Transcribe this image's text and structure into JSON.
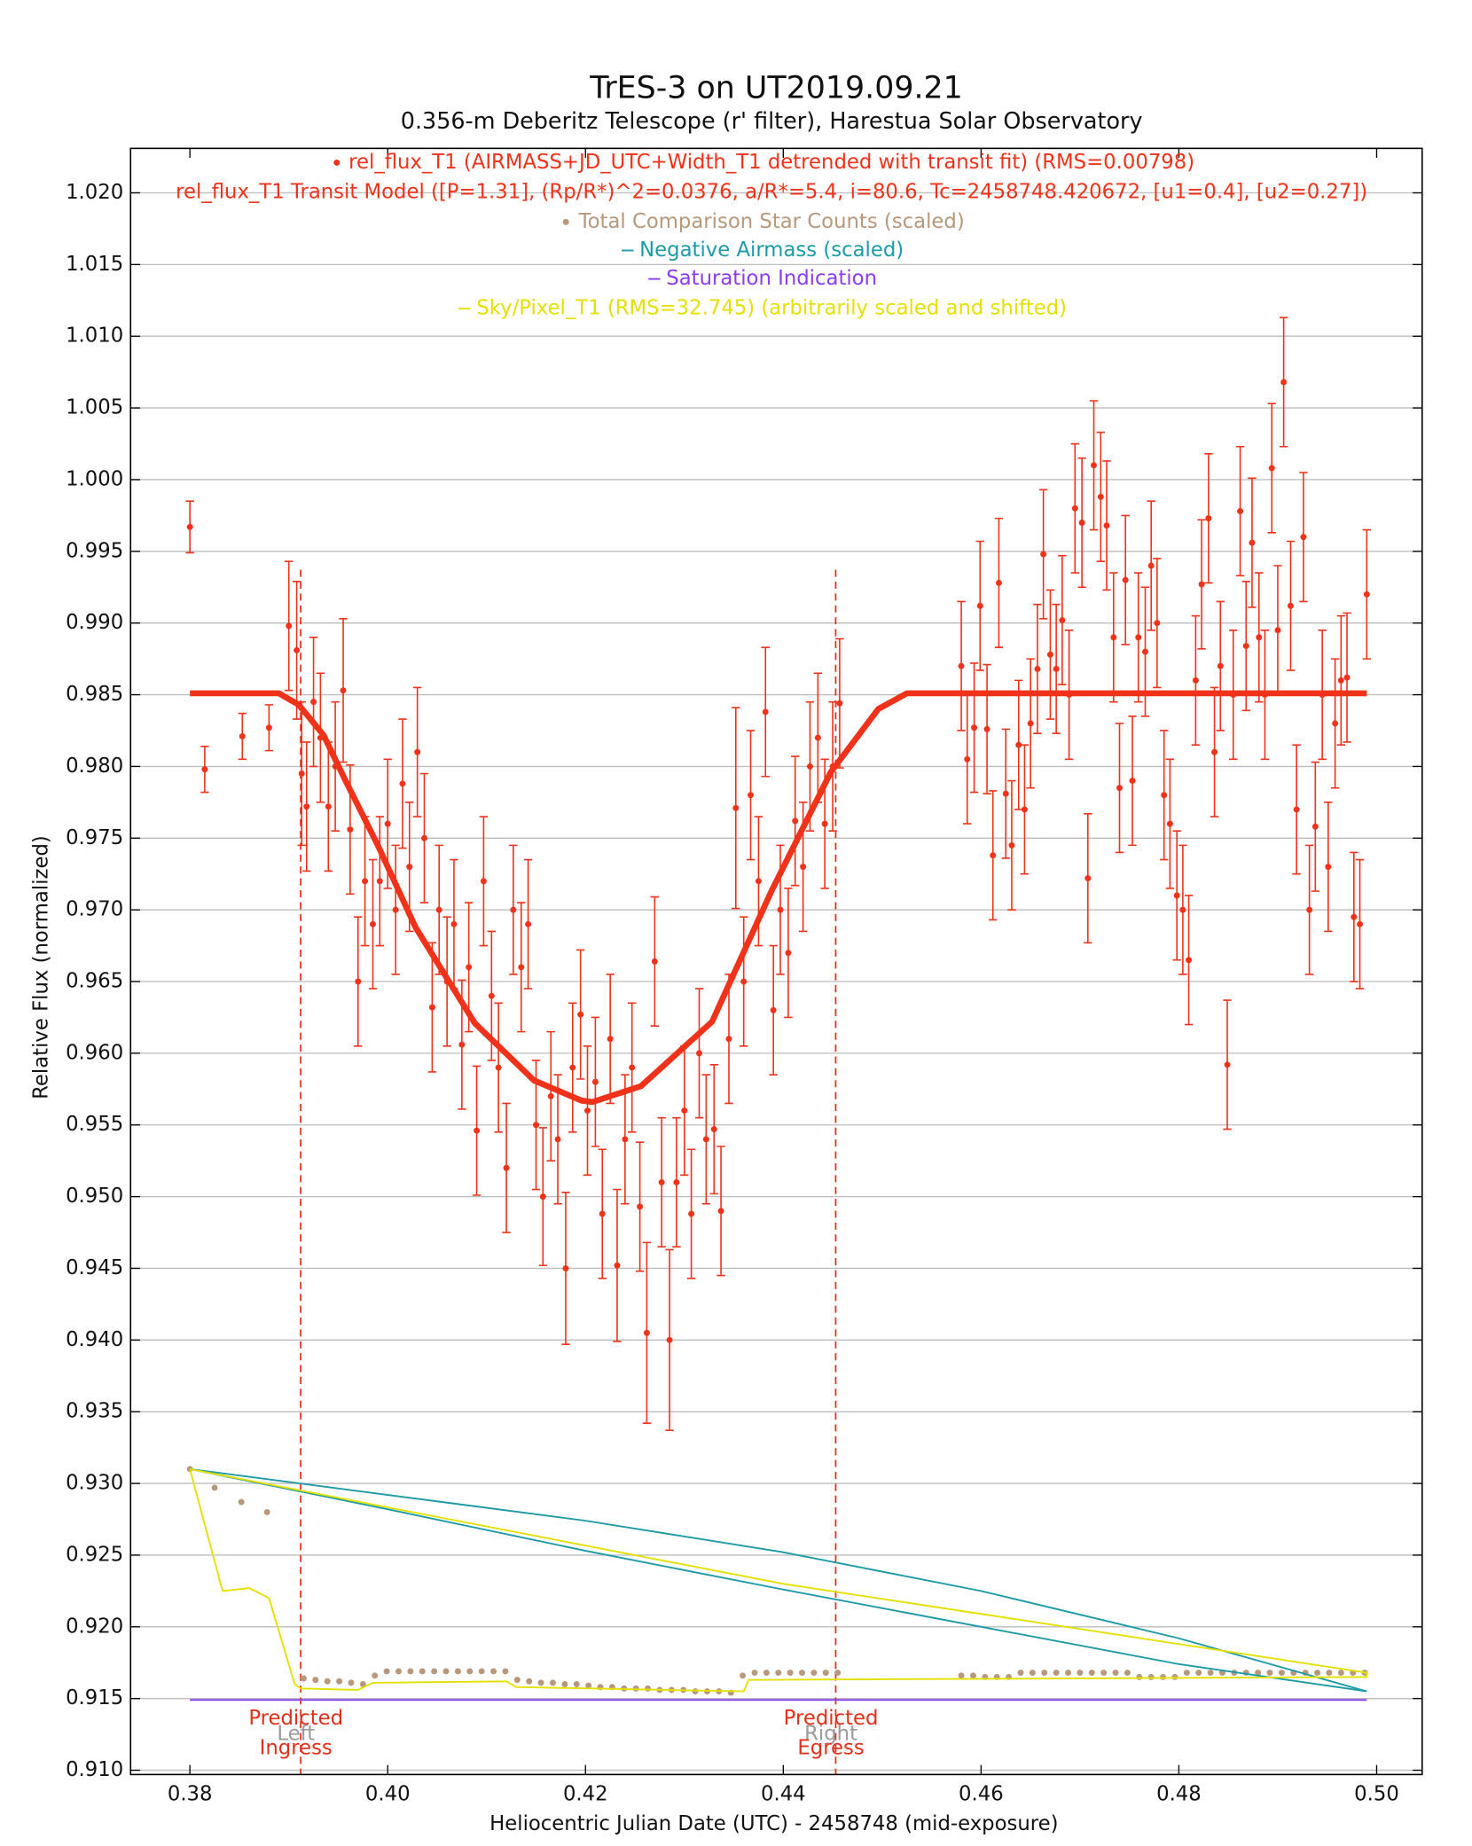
{
  "chart_data": {
    "type": "scatter",
    "title": "TrES-3 on UT2019.09.21",
    "subtitle": "0.356-m Deberitz Telescope (r' filter), Harestua Solar Observatory",
    "xlabel": "Heliocentric Julian Date (UTC) - 2458748 (mid-exposure)",
    "ylabel": "Relative Flux (normalized)",
    "xlim": [
      0.374,
      0.5046
    ],
    "ylim": [
      0.9097,
      1.0231
    ],
    "xticks": [
      0.38,
      {
        "value": 0.4,
        "label": "0.40"
      },
      0.42,
      0.44,
      0.46,
      0.48,
      {
        "value": 0.5,
        "label": "0.50"
      }
    ],
    "yticks": [
      {
        "value": 0.91,
        "label": "0.910"
      },
      0.915,
      {
        "value": 0.92,
        "label": "0.920"
      },
      0.925,
      {
        "value": 0.93,
        "label": "0.930"
      },
      0.935,
      {
        "value": 0.94,
        "label": "0.940"
      },
      0.945,
      {
        "value": 0.95,
        "label": "0.950"
      },
      0.955,
      {
        "value": 0.96,
        "label": "0.960"
      },
      0.965,
      {
        "value": 0.97,
        "label": "0.970"
      },
      0.975,
      {
        "value": 0.98,
        "label": "0.980"
      },
      0.985,
      {
        "value": 0.99,
        "label": "0.990"
      },
      0.995,
      {
        "value": 1.0,
        "label": "1.000"
      },
      1.005,
      {
        "value": 1.01,
        "label": "1.010"
      },
      1.015,
      {
        "value": 1.02,
        "label": "1.020"
      }
    ],
    "grid": true,
    "markers": [
      {
        "x": 0.3912,
        "label": [
          "Predicted",
          "Ingress"
        ],
        "side": "Left"
      },
      {
        "x": 0.4453,
        "label": [
          "Predicted",
          "Egress"
        ],
        "side": "Right"
      }
    ],
    "series": [
      {
        "name": "rel_flux_T1 (AIRMASS+JD_UTC+Width_T1 detrended with transit fit) (RMS=0.00798)",
        "color": "#f0321a",
        "style": "errorbar",
        "x": [
          0.38,
          0.3815,
          0.3853,
          0.388,
          0.39,
          0.3908,
          0.3913,
          0.3918,
          0.3925,
          0.3932,
          0.394,
          0.3947,
          0.3955,
          0.3962,
          0.397,
          0.3977,
          0.3985,
          0.3992,
          0.4,
          0.4008,
          0.4015,
          0.4022,
          0.403,
          0.4037,
          0.4045,
          0.4052,
          0.406,
          0.4067,
          0.4075,
          0.4082,
          0.409,
          0.4097,
          0.4105,
          0.4112,
          0.412,
          0.4127,
          0.4135,
          0.4142,
          0.415,
          0.4157,
          0.4165,
          0.4172,
          0.418,
          0.4187,
          0.4195,
          0.4202,
          0.421,
          0.4217,
          0.4225,
          0.4232,
          0.424,
          0.4247,
          0.4255,
          0.4262,
          0.427,
          0.4277,
          0.4285,
          0.4292,
          0.43,
          0.4307,
          0.4315,
          0.4322,
          0.433,
          0.4337,
          0.4345,
          0.4352,
          0.436,
          0.4367,
          0.4375,
          0.4382,
          0.439,
          0.4397,
          0.4405,
          0.4412,
          0.442,
          0.4427,
          0.4435,
          0.4442,
          0.445,
          0.4457,
          0.458,
          0.4586,
          0.4593,
          0.4599,
          0.4606,
          0.4612,
          0.4618,
          0.4625,
          0.4631,
          0.4638,
          0.4644,
          0.465,
          0.4657,
          0.4663,
          0.467,
          0.4676,
          0.4682,
          0.4689,
          0.4695,
          0.4702,
          0.4708,
          0.4714,
          0.4721,
          0.4727,
          0.4734,
          0.474,
          0.4746,
          0.4753,
          0.4759,
          0.4766,
          0.4772,
          0.4778,
          0.4785,
          0.4791,
          0.4798,
          0.4804,
          0.481,
          0.4817,
          0.4823,
          0.483,
          0.4836,
          0.4842,
          0.4849,
          0.4855,
          0.4862,
          0.4868,
          0.4874,
          0.4881,
          0.4887,
          0.4894,
          0.49,
          0.4906,
          0.4913,
          0.4919,
          0.4926,
          0.4932,
          0.4938,
          0.4945,
          0.4951,
          0.4958,
          0.4964,
          0.497,
          0.4977,
          0.4983,
          0.499
        ],
        "values": [
          0.9967,
          0.9798,
          0.9821,
          0.9827,
          0.9898,
          0.9881,
          0.9795,
          0.9772,
          0.9845,
          0.982,
          0.9772,
          0.98,
          0.9853,
          0.9756,
          0.965,
          0.972,
          0.969,
          0.972,
          0.976,
          0.97,
          0.9788,
          0.973,
          0.981,
          0.975,
          0.9632,
          0.97,
          0.965,
          0.969,
          0.9606,
          0.966,
          0.9546,
          0.972,
          0.964,
          0.959,
          0.952,
          0.97,
          0.966,
          0.969,
          0.955,
          0.95,
          0.957,
          0.954,
          0.945,
          0.959,
          0.9627,
          0.956,
          0.958,
          0.9488,
          0.961,
          0.9452,
          0.954,
          0.959,
          0.9493,
          0.9405,
          0.9664,
          0.951,
          0.94,
          0.951,
          0.956,
          0.9488,
          0.96,
          0.954,
          0.9547,
          0.949,
          0.961,
          0.9771,
          0.965,
          0.978,
          0.972,
          0.9838,
          0.963,
          0.97,
          0.967,
          0.9762,
          0.973,
          0.98,
          0.982,
          0.976,
          0.98,
          0.9844,
          0.987,
          0.9805,
          0.9827,
          0.9912,
          0.9826,
          0.9738,
          0.9928,
          0.9781,
          0.9745,
          0.9815,
          0.977,
          0.983,
          0.9868,
          0.9948,
          0.9878,
          0.9868,
          0.9902,
          0.985,
          0.998,
          0.997,
          0.9722,
          1.001,
          0.9988,
          0.9968,
          0.989,
          0.9785,
          0.993,
          0.979,
          0.989,
          0.988,
          0.994,
          0.99,
          0.978,
          0.976,
          0.971,
          0.97,
          0.9665,
          0.986,
          0.9927,
          0.9973,
          0.981,
          0.987,
          0.9592,
          0.985,
          0.9978,
          0.9884,
          0.9956,
          0.989,
          0.985,
          1.0008,
          0.9895,
          1.0068,
          0.9912,
          0.977,
          0.996,
          0.97,
          0.9758,
          0.985,
          0.973,
          0.983,
          0.986,
          0.9862,
          0.9695,
          0.969,
          0.992
        ],
        "errors": [
          0.0018,
          0.0016,
          0.0016,
          0.0016,
          0.0045,
          0.0048,
          0.005,
          0.0045,
          0.0045,
          0.0045,
          0.0045,
          0.0045,
          0.005,
          0.0045,
          0.0045,
          0.0045,
          0.0045,
          0.0045,
          0.0045,
          0.0045,
          0.0045,
          0.0045,
          0.0045,
          0.0045,
          0.0045,
          0.0045,
          0.0045,
          0.0045,
          0.0045,
          0.0045,
          0.0045,
          0.0045,
          0.0045,
          0.0045,
          0.0045,
          0.0045,
          0.0045,
          0.0045,
          0.0045,
          0.0048,
          0.0045,
          0.0045,
          0.0053,
          0.0045,
          0.0045,
          0.0045,
          0.0045,
          0.0045,
          0.0045,
          0.0053,
          0.0045,
          0.0045,
          0.0045,
          0.0063,
          0.0045,
          0.0045,
          0.0063,
          0.0045,
          0.0045,
          0.0045,
          0.0045,
          0.0045,
          0.0045,
          0.0045,
          0.0045,
          0.007,
          0.0045,
          0.0045,
          0.0045,
          0.0045,
          0.0045,
          0.0045,
          0.0045,
          0.0045,
          0.0045,
          0.0045,
          0.0045,
          0.0045,
          0.0045,
          0.0045,
          0.0045,
          0.0045,
          0.0045,
          0.0045,
          0.0045,
          0.0045,
          0.0045,
          0.0045,
          0.0045,
          0.0045,
          0.0045,
          0.0045,
          0.0045,
          0.0045,
          0.0045,
          0.0045,
          0.0045,
          0.0045,
          0.0045,
          0.0045,
          0.0045,
          0.0045,
          0.0045,
          0.0045,
          0.0045,
          0.0045,
          0.0045,
          0.0045,
          0.0045,
          0.0045,
          0.0045,
          0.0045,
          0.0045,
          0.0045,
          0.0045,
          0.0045,
          0.0045,
          0.0045,
          0.0045,
          0.0045,
          0.0045,
          0.0045,
          0.0045,
          0.0045,
          0.0045,
          0.0045,
          0.0045,
          0.0045,
          0.0045,
          0.0045,
          0.0045,
          0.0045,
          0.0045,
          0.0045,
          0.0045,
          0.0045,
          0.0045,
          0.0045,
          0.0045,
          0.0045,
          0.0045,
          0.0045,
          0.0045,
          0.0045,
          0.0045
        ]
      },
      {
        "name": "rel_flux_T1 Transit Model ([P=1.31], (Rp/R*)^2=0.0376, a/R*=5.4, i=80.6, Tc=2458748.420672, [u1=0.4], [u2=0.27])",
        "color": "#f0321a",
        "style": "model",
        "x": [
          0.38,
          0.389,
          0.391,
          0.3935,
          0.3956,
          0.399,
          0.4028,
          0.4088,
          0.4148,
          0.4196,
          0.4207,
          0.4256,
          0.4328,
          0.4388,
          0.4448,
          0.4496,
          0.4525,
          0.499
        ],
        "values": [
          0.9851,
          0.9851,
          0.9843,
          0.9822,
          0.9792,
          0.9745,
          0.9688,
          0.9621,
          0.9581,
          0.9567,
          0.9566,
          0.9577,
          0.9622,
          0.9713,
          0.9796,
          0.984,
          0.9851,
          0.9851
        ]
      },
      {
        "name": "Total Comparison Star Counts (scaled)",
        "color": "#b8987c",
        "style": "dots",
        "x": [
          0.38,
          0.3825,
          0.3852,
          0.3878,
          0.3915,
          0.3927,
          0.3939,
          0.3951,
          0.3963,
          0.3975,
          0.3987,
          0.3999,
          0.4011,
          0.4023,
          0.4035,
          0.4047,
          0.4059,
          0.4071,
          0.4083,
          0.4095,
          0.4107,
          0.4119,
          0.4131,
          0.4143,
          0.4155,
          0.4167,
          0.4179,
          0.4191,
          0.4203,
          0.4215,
          0.4227,
          0.4239,
          0.4251,
          0.4263,
          0.4275,
          0.4287,
          0.4299,
          0.4311,
          0.4323,
          0.4335,
          0.4347,
          0.4359,
          0.4371,
          0.4383,
          0.4395,
          0.4407,
          0.4419,
          0.4431,
          0.4443,
          0.4455,
          0.458,
          0.4592,
          0.4604,
          0.4616,
          0.4628,
          0.464,
          0.4652,
          0.4664,
          0.4676,
          0.4688,
          0.47,
          0.4712,
          0.4724,
          0.4736,
          0.4748,
          0.476,
          0.4772,
          0.4784,
          0.4796,
          0.4808,
          0.482,
          0.4832,
          0.4844,
          0.4856,
          0.4868,
          0.488,
          0.4892,
          0.4904,
          0.4916,
          0.4928,
          0.494,
          0.4952,
          0.4964,
          0.4976,
          0.4988
        ],
        "values": [
          0.931,
          0.9297,
          0.9287,
          0.928,
          0.9164,
          0.9163,
          0.9162,
          0.9162,
          0.9161,
          0.916,
          0.9166,
          0.9169,
          0.9169,
          0.9169,
          0.9169,
          0.9169,
          0.9169,
          0.9169,
          0.9169,
          0.9169,
          0.9169,
          0.9169,
          0.9163,
          0.9162,
          0.9161,
          0.9161,
          0.916,
          0.916,
          0.9159,
          0.9158,
          0.9158,
          0.9157,
          0.9157,
          0.9157,
          0.9156,
          0.9156,
          0.9156,
          0.9155,
          0.9155,
          0.9155,
          0.9154,
          0.9166,
          0.9168,
          0.9168,
          0.9168,
          0.9168,
          0.9168,
          0.9168,
          0.9168,
          0.9168,
          0.9166,
          0.9166,
          0.9165,
          0.9165,
          0.9165,
          0.9168,
          0.9168,
          0.9168,
          0.9168,
          0.9168,
          0.9168,
          0.9168,
          0.9168,
          0.9168,
          0.9168,
          0.9165,
          0.9165,
          0.9165,
          0.9165,
          0.9168,
          0.9168,
          0.9168,
          0.9168,
          0.9168,
          0.9168,
          0.9168,
          0.9168,
          0.9168,
          0.9168,
          0.9168,
          0.9168,
          0.9168,
          0.9168,
          0.9168,
          0.9168
        ]
      },
      {
        "name": "Negative Airmass (scaled)",
        "color": "#1c9aa6",
        "style": "line",
        "x": [
          0.38,
          0.4,
          0.42,
          0.44,
          0.46,
          0.48,
          0.499,
          0.48,
          0.46,
          0.44,
          0.42,
          0.4,
          0.38
        ],
        "values": [
          0.931,
          0.9292,
          0.9274,
          0.9252,
          0.9225,
          0.9192,
          0.9155,
          0.9174,
          0.92,
          0.9226,
          0.9253,
          0.9282,
          0.931
        ]
      },
      {
        "name": "Saturation Indication",
        "color": "#8a3cf0",
        "style": "line",
        "x": [
          0.38,
          0.499
        ],
        "values": [
          0.9149,
          0.9149
        ]
      },
      {
        "name": "Sky/Pixel_T1 (RMS=32.745) (arbitrarily scaled and shifted)",
        "color": "#e4e000",
        "style": "line",
        "x": [
          0.38,
          0.3833,
          0.386,
          0.388,
          0.3906,
          0.3912,
          0.397,
          0.3985,
          0.412,
          0.413,
          0.436,
          0.4365,
          0.499,
          0.499,
          0.44,
          0.38
        ],
        "values": [
          0.931,
          0.9225,
          0.9227,
          0.922,
          0.916,
          0.9157,
          0.9156,
          0.9161,
          0.9162,
          0.9158,
          0.9155,
          0.9163,
          0.9165,
          0.9168,
          0.923,
          0.931
        ]
      }
    ]
  }
}
